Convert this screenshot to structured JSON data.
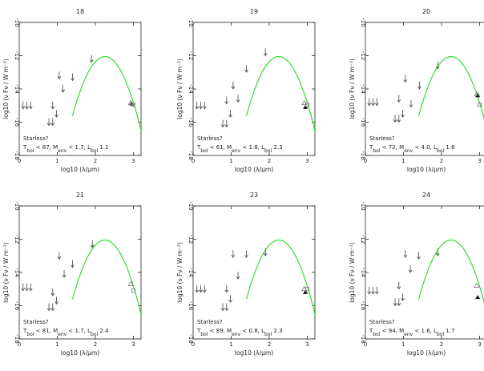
{
  "figure": {
    "ylabel_text": "log10 (ν Fν / W m⁻²)",
    "xlabel_text": "log10 (λ/μm)",
    "axis_color": "#222222",
    "model_color": "#33dd33",
    "arrow_color": "#444444",
    "detection_color": "#111111",
    "open_marker_color": "#777777"
  },
  "chart_data": [
    {
      "type": "scatter",
      "title": "18",
      "xlim": [
        0,
        3.2
      ],
      "ylim": [
        -18,
        -10
      ],
      "xticks": [
        0,
        1,
        2,
        3
      ],
      "yticks": [
        -10,
        -12,
        -14,
        -16,
        -18
      ],
      "xlabel": "log10 (λ/μm)",
      "ylabel": "log10 (ν Fν / W m⁻²)",
      "annotation_line1": "Starless?",
      "annotation_line2": "T_bol < 87, M_env < 1.7, L_bol 1.1",
      "upper_limits": [
        [
          0.1,
          -15.0
        ],
        [
          0.2,
          -15.0
        ],
        [
          0.3,
          -15.0
        ],
        [
          0.78,
          -16.0
        ],
        [
          0.88,
          -16.0
        ],
        [
          0.98,
          -15.5
        ],
        [
          0.88,
          -15.0
        ],
        [
          1.15,
          -14.0
        ],
        [
          1.05,
          -13.2
        ],
        [
          1.4,
          -13.3
        ],
        [
          1.9,
          -12.2
        ]
      ],
      "detections": [
        [
          2.95,
          -14.9
        ]
      ],
      "open_squares": [
        [
          3.0,
          -14.95
        ]
      ],
      "open_triangles": [
        [
          2.93,
          -14.85
        ]
      ],
      "model": {
        "peak_x": 2.25,
        "peak_y": -12.05,
        "width": 0.45
      }
    },
    {
      "type": "scatter",
      "title": "19",
      "xlim": [
        0,
        3.2
      ],
      "ylim": [
        -18,
        -10
      ],
      "xticks": [
        0,
        1,
        2,
        3
      ],
      "yticks": [
        -10,
        -12,
        -14,
        -16,
        -18
      ],
      "xlabel": "log10 (λ/μm)",
      "ylabel": "log10 (ν Fν / W m⁻²)",
      "annotation_line1": "Starless?",
      "annotation_line2": "T_bol < 61, M_env < 1.8, L_bol 2.3",
      "upper_limits": [
        [
          0.1,
          -15.0
        ],
        [
          0.2,
          -15.0
        ],
        [
          0.3,
          -15.0
        ],
        [
          0.78,
          -16.1
        ],
        [
          0.88,
          -16.1
        ],
        [
          0.98,
          -15.5
        ],
        [
          0.88,
          -14.7
        ],
        [
          1.18,
          -14.6
        ],
        [
          1.05,
          -13.8
        ],
        [
          1.4,
          -12.8
        ],
        [
          1.9,
          -11.8
        ]
      ],
      "detections": [
        [
          2.95,
          -15.1
        ]
      ],
      "open_squares": [
        [
          3.0,
          -14.95
        ]
      ],
      "open_triangles": [
        [
          2.92,
          -14.85
        ]
      ],
      "model": {
        "peak_x": 2.25,
        "peak_y": -12.05,
        "width": 0.45
      }
    },
    {
      "type": "scatter",
      "title": "20",
      "xlim": [
        0,
        3.2
      ],
      "ylim": [
        -18,
        -10
      ],
      "xticks": [
        0,
        1,
        2,
        3
      ],
      "yticks": [
        -10,
        -12,
        -14,
        -16,
        -18
      ],
      "xlabel": "log10 (λ/μm)",
      "ylabel": "log10 (ν Fν / W m⁻²)",
      "annotation_line1": "Starless?",
      "annotation_line2": "T_bol < 72, M_env < 4.0, L_bol 1.6",
      "upper_limits": [
        [
          0.1,
          -14.8
        ],
        [
          0.2,
          -14.8
        ],
        [
          0.3,
          -14.8
        ],
        [
          0.78,
          -15.8
        ],
        [
          0.88,
          -15.8
        ],
        [
          0.98,
          -15.5
        ],
        [
          0.88,
          -14.6
        ],
        [
          1.2,
          -14.9
        ],
        [
          1.05,
          -13.4
        ],
        [
          1.42,
          -13.8
        ],
        [
          1.9,
          -12.6
        ]
      ],
      "detections": [
        [
          2.95,
          -14.4
        ]
      ],
      "open_squares": [
        [
          3.0,
          -14.95
        ]
      ],
      "open_triangles": [
        [
          2.93,
          -14.3
        ]
      ],
      "model": {
        "peak_x": 2.25,
        "peak_y": -12.05,
        "width": 0.45
      }
    },
    {
      "type": "scatter",
      "title": "21",
      "xlim": [
        0,
        3.2
      ],
      "ylim": [
        -18,
        -10
      ],
      "xticks": [
        0,
        1,
        2,
        3
      ],
      "yticks": [
        -10,
        -12,
        -14,
        -16,
        -18
      ],
      "xlabel": "log10 (λ/μm)",
      "ylabel": "log10 (ν Fν / W m⁻²)",
      "annotation_line1": "Starless?",
      "annotation_line2": "T_bol < 81, M_env < 1.7, L_bol 2.4",
      "upper_limits": [
        [
          0.1,
          -14.9
        ],
        [
          0.2,
          -14.9
        ],
        [
          0.3,
          -14.9
        ],
        [
          0.78,
          -16.1
        ],
        [
          0.88,
          -16.1
        ],
        [
          0.98,
          -15.7
        ],
        [
          0.88,
          -15.2
        ],
        [
          1.18,
          -14.1
        ],
        [
          1.05,
          -13.0
        ],
        [
          1.4,
          -13.5
        ],
        [
          1.92,
          -12.3
        ]
      ],
      "detections": [],
      "open_squares": [
        [
          3.0,
          -15.1
        ]
      ],
      "open_triangles": [
        [
          2.93,
          -14.7
        ]
      ],
      "model": {
        "peak_x": 2.25,
        "peak_y": -12.05,
        "width": 0.45
      }
    },
    {
      "type": "scatter",
      "title": "23",
      "xlim": [
        0,
        3.2
      ],
      "ylim": [
        -18,
        -10
      ],
      "xticks": [
        0,
        1,
        2,
        3
      ],
      "yticks": [
        -10,
        -12,
        -14,
        -16,
        -18
      ],
      "xlabel": "log10 (λ/μm)",
      "ylabel": "log10 (ν Fν / W m⁻²)",
      "annotation_line1": "Starless?",
      "annotation_line2": "T_bol < 89, M_env < 0.8, L_bol 2.3",
      "upper_limits": [
        [
          0.1,
          -15.0
        ],
        [
          0.2,
          -15.0
        ],
        [
          0.3,
          -15.0
        ],
        [
          0.78,
          -16.1
        ],
        [
          0.88,
          -16.1
        ],
        [
          0.98,
          -15.6
        ],
        [
          0.88,
          -15.0
        ],
        [
          1.18,
          -14.2
        ],
        [
          1.05,
          -12.9
        ],
        [
          1.4,
          -12.9
        ],
        [
          1.9,
          -12.8
        ]
      ],
      "detections": [
        [
          2.95,
          -15.2
        ]
      ],
      "open_squares": [
        [
          3.0,
          -15.0
        ]
      ],
      "open_triangles": [
        [
          2.92,
          -15.0
        ]
      ],
      "model": {
        "peak_x": 2.25,
        "peak_y": -12.05,
        "width": 0.45
      }
    },
    {
      "type": "scatter",
      "title": "24",
      "xlim": [
        0,
        3.2
      ],
      "ylim": [
        -18,
        -10
      ],
      "xticks": [
        0,
        1,
        2,
        3
      ],
      "yticks": [
        -10,
        -12,
        -14,
        -16,
        -18
      ],
      "xlabel": "log10 (λ/μm)",
      "ylabel": "log10 (ν Fν / W m⁻²)",
      "annotation_line1": "Starless?",
      "annotation_line2": "T_bol < 94, M_env < 1.6, L_bol 1.7",
      "upper_limits": [
        [
          0.1,
          -15.1
        ],
        [
          0.2,
          -15.1
        ],
        [
          0.3,
          -15.1
        ],
        [
          0.78,
          -15.8
        ],
        [
          0.88,
          -15.8
        ],
        [
          0.98,
          -15.5
        ],
        [
          0.88,
          -14.8
        ],
        [
          1.18,
          -13.8
        ],
        [
          1.05,
          -12.9
        ],
        [
          1.4,
          -13.0
        ],
        [
          1.9,
          -12.8
        ]
      ],
      "detections": [
        [
          2.95,
          -15.5
        ]
      ],
      "open_squares": [],
      "open_triangles": [
        [
          2.92,
          -14.8
        ]
      ],
      "model": {
        "peak_x": 2.25,
        "peak_y": -12.05,
        "width": 0.45
      }
    }
  ]
}
